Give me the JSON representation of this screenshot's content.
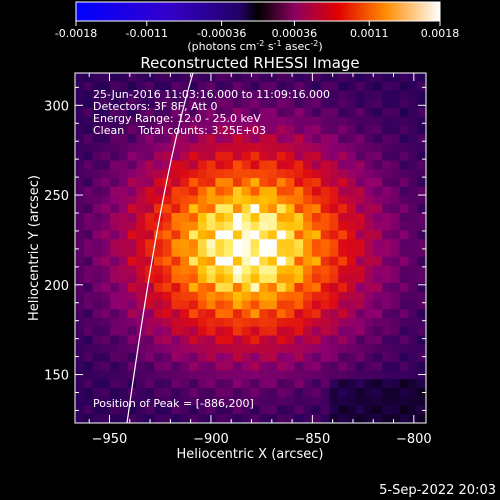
{
  "chart_data": {
    "type": "heatmap",
    "title": "Reconstructed RHESSI Image",
    "xlabel": "Heliocentric X (arcsec)",
    "ylabel": "Heliocentric Y (arcsec)",
    "xlim": [
      -967,
      -794
    ],
    "ylim": [
      123,
      318
    ],
    "xticks": [
      -950,
      -900,
      -850,
      -800
    ],
    "yticks": [
      150,
      200,
      250,
      300
    ],
    "colorbar": {
      "ticks": [
        "-0.0018",
        "-0.0011",
        "-0.00036",
        "0.00036",
        "0.0011",
        "0.0018"
      ],
      "range": [
        -0.0018,
        0.0018
      ],
      "units_label": "(photons cm",
      "units_sup1": "-2",
      "units_mid": " s",
      "units_sup2": "-1",
      "units_end": " asec",
      "units_sup3": "-2",
      "units_close": ")"
    },
    "annotations": [
      "25-Jun-2016 11:03:16.000 to 11:09:16.000",
      "Detectors: 3F 8F, Att 0",
      "Energy Range: 12.0 - 25.0 keV",
      "Clean    Total counts: 3.25E+03"
    ],
    "peak_label": "Position of Peak = [-886,200]",
    "peak": [
      -886,
      200
    ],
    "source_center": [
      -882,
      222
    ]
  },
  "timestamp": "5-Sep-2022 20:03"
}
